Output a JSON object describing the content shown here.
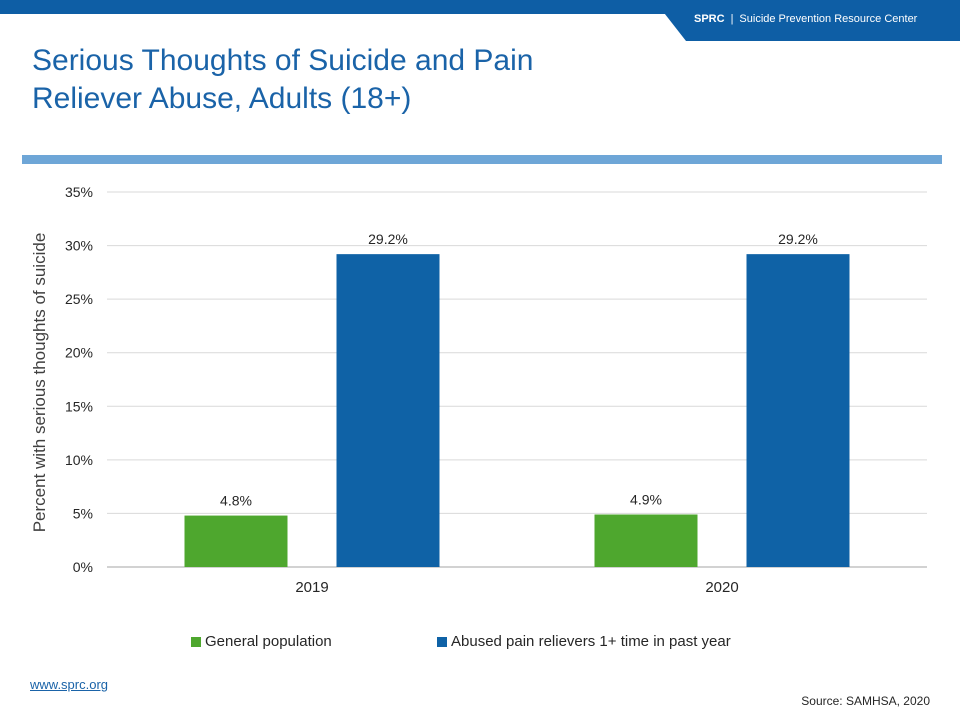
{
  "header": {
    "brand_abbr": "SPRC",
    "brand_separator": "|",
    "brand_name": "Suicide Prevention Resource Center",
    "brand_color": "#0e5ea5"
  },
  "slide": {
    "title_line1": "Serious Thoughts of Suicide and Pain",
    "title_line2": "Reliever Abuse, Adults (18+)",
    "title_color": "#1a63a8",
    "rule_color": "#6ea6d7"
  },
  "chart_data": {
    "type": "bar",
    "categories": [
      "2019",
      "2020"
    ],
    "series": [
      {
        "name": "General population",
        "values": [
          4.8,
          4.9
        ],
        "labels": [
          "4.8%",
          "4.9%"
        ],
        "color": "#4ea72e"
      },
      {
        "name": "Abused pain relievers 1+ time in past year",
        "values": [
          29.2,
          29.2
        ],
        "labels": [
          "29.2%",
          "29.2%"
        ],
        "color": "#0f62a6"
      }
    ],
    "ylabel": "Percent with serious thoughts of suicide",
    "xlabel": "",
    "ylim": [
      0,
      35
    ],
    "yticks": [
      0,
      5,
      10,
      15,
      20,
      25,
      30,
      35
    ],
    "ytick_labels": [
      "0%",
      "5%",
      "10%",
      "15%",
      "20%",
      "25%",
      "30%",
      "35%"
    ],
    "grid": true,
    "legend_position": "bottom"
  },
  "footer": {
    "link_text": "www.sprc.org",
    "source": "Source:  SAMHSA, 2020"
  }
}
